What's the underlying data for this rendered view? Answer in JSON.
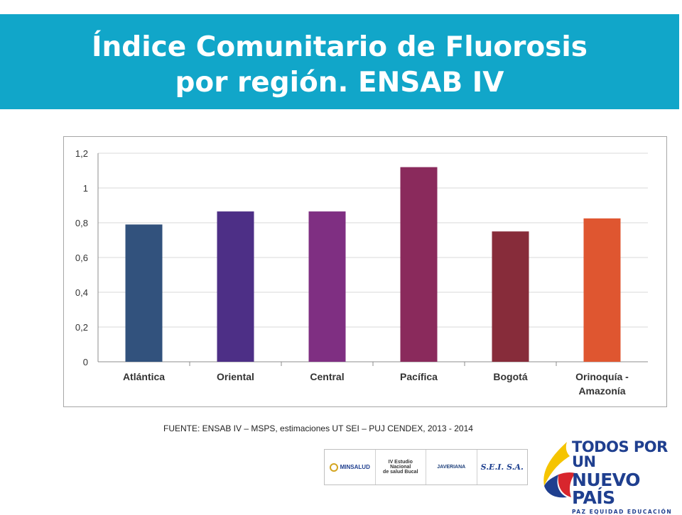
{
  "slide": {
    "title_line1": "Índice Comunitario de Fluorosis",
    "title_line2": "por región. ENSAB IV",
    "source": "FUENTE: ENSAB IV – MSPS, estimaciones UT SEI – PUJ CENDEX, 2013 - 2014"
  },
  "chart_data": {
    "type": "bar",
    "categories": [
      "Atlántica",
      "Oriental",
      "Central",
      "Pacífica",
      "Bogotá",
      "Orinoquía - Amazonía"
    ],
    "values": [
      0.79,
      0.865,
      0.865,
      1.12,
      0.75,
      0.825
    ],
    "colors": [
      "#32527d",
      "#4d2f86",
      "#7f2f82",
      "#8a2a5c",
      "#872c3a",
      "#df5630"
    ],
    "ylim": [
      0,
      1.2
    ],
    "yticks": [
      0,
      0.2,
      0.4,
      0.6,
      0.8,
      1,
      1.2
    ],
    "ytick_labels": [
      "0",
      "0,2",
      "0,4",
      "0,6",
      "0,8",
      "1",
      "1,2"
    ],
    "grid": true,
    "title": "",
    "xlabel": "",
    "ylabel": ""
  },
  "logos": {
    "minsalud": "MINSALUD",
    "ensab_line1": "IV Estudio Nacional",
    "ensab_line2": "de salud Bucal",
    "javeriana": "JAVERIANA",
    "sei": "S.E.I. S.A.",
    "gov_line1": "TODOS POR UN",
    "gov_line2": "NUEVO PAÍS",
    "gov_line3": "PAZ EQUIDAD EDUCACIÓN"
  }
}
